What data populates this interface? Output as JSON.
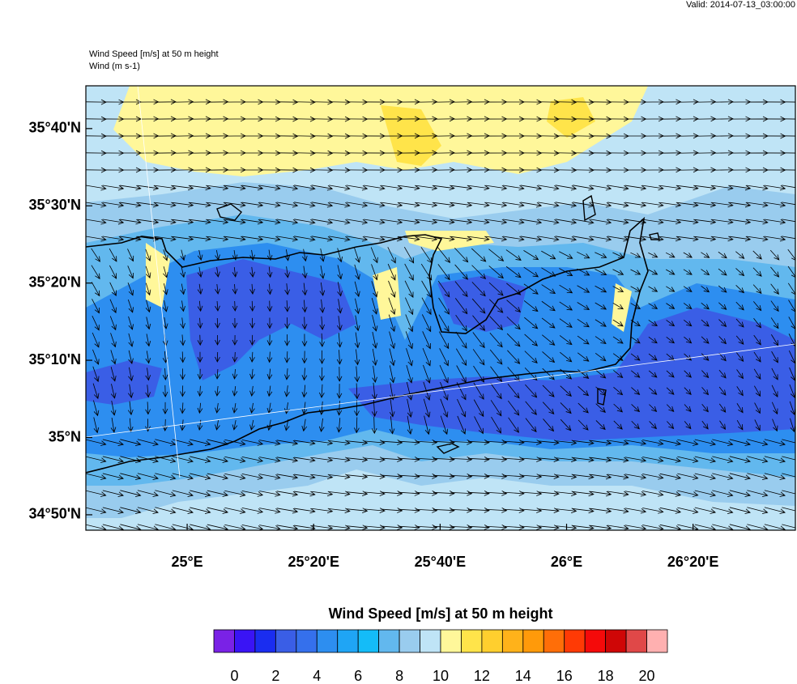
{
  "valid": "Valid: 2014-07-13_03:00:00",
  "field_title": "Wind Speed [m/s] at 50 m height",
  "vector_title": "Wind   (m s-1)",
  "map": {
    "xlim": [
      24.733,
      26.603
    ],
    "ylim": [
      34.8,
      35.759
    ],
    "yticks": [
      {
        "value": 35.6667,
        "label": "35°40'N"
      },
      {
        "value": 35.5,
        "label": "35°30'N"
      },
      {
        "value": 35.3333,
        "label": "35°20'N"
      },
      {
        "value": 35.1667,
        "label": "35°10'N"
      },
      {
        "value": 35.0,
        "label": "35°N"
      },
      {
        "value": 34.8333,
        "label": "34°50'N"
      }
    ],
    "xticks": [
      {
        "value": 25.0,
        "label": "25°E"
      },
      {
        "value": 25.3333,
        "label": "25°20'E"
      },
      {
        "value": 25.6667,
        "label": "25°40'E"
      },
      {
        "value": 26.0,
        "label": "26°E"
      },
      {
        "value": 26.3333,
        "label": "26°20'E"
      }
    ]
  },
  "colorbar": {
    "title": "Wind Speed [m/s] at 50 m height",
    "range": [
      -1,
      21
    ],
    "ticks": [
      0,
      2,
      4,
      6,
      8,
      10,
      12,
      14,
      16,
      18,
      20
    ],
    "colors": [
      "#7a22e6",
      "#3a14f5",
      "#1a2df0",
      "#3a5ee6",
      "#3570ec",
      "#2d8ef0",
      "#1fa5f5",
      "#14bcf8",
      "#62b8ee",
      "#99ccee",
      "#bfe4f6",
      "#fff79a",
      "#ffe44a",
      "#ffcf2e",
      "#ffb21a",
      "#ff9a0a",
      "#ff6e08",
      "#ff3a05",
      "#f50a0a",
      "#cf0606",
      "#e04848",
      "#ffb0b0"
    ]
  }
}
